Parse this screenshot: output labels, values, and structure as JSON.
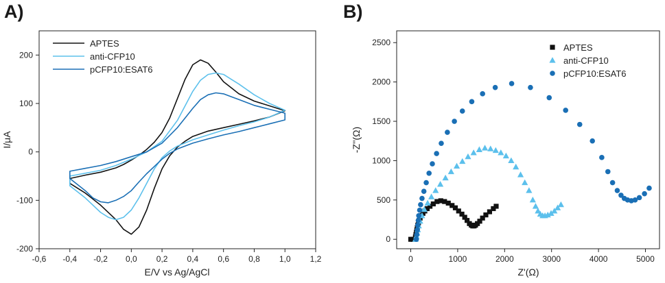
{
  "chart_data": [
    {
      "panel": "A)",
      "type": "line",
      "title": "",
      "xlabel": "E/V vs Ag/AgCl",
      "ylabel": "I/μA",
      "xlim": [
        -0.6,
        1.2
      ],
      "ylim": [
        -200,
        250
      ],
      "xticks": [
        -0.6,
        -0.4,
        -0.2,
        0.0,
        0.2,
        0.4,
        0.6,
        0.8,
        1.0,
        1.2
      ],
      "xtick_labels": [
        "-0,6",
        "-0,4",
        "-0,2",
        "0,0",
        "0,2",
        "0,4",
        "0,6",
        "0,8",
        "1,0",
        "1,2"
      ],
      "yticks": [
        -200,
        -100,
        0,
        100,
        200
      ],
      "ytick_labels": [
        "-200",
        "-100",
        "0",
        "100",
        "200"
      ],
      "legend_position": "top-left",
      "series": [
        {
          "name": "APTES",
          "color": "#111111",
          "x": [
            -0.4,
            -0.3,
            -0.2,
            -0.1,
            -0.05,
            0.0,
            0.05,
            0.1,
            0.15,
            0.2,
            0.25,
            0.3,
            0.35,
            0.4,
            0.45,
            0.5,
            0.55,
            0.6,
            0.7,
            0.8,
            0.9,
            1.0,
            1.0,
            0.9,
            0.8,
            0.7,
            0.6,
            0.5,
            0.4,
            0.35,
            0.3,
            0.25,
            0.2,
            0.15,
            0.1,
            0.05,
            0.0,
            -0.05,
            -0.1,
            -0.2,
            -0.3,
            -0.4
          ],
          "y": [
            -55,
            -48,
            -42,
            -33,
            -26,
            -17,
            -7,
            5,
            20,
            40,
            70,
            110,
            150,
            180,
            190,
            183,
            165,
            145,
            120,
            105,
            95,
            85,
            85,
            72,
            64,
            57,
            50,
            43,
            32,
            22,
            10,
            -8,
            -35,
            -75,
            -120,
            -155,
            -170,
            -160,
            -140,
            -110,
            -85,
            -65
          ]
        },
        {
          "name": "anti-CFP10",
          "color": "#5cc0ec",
          "x": [
            -0.4,
            -0.3,
            -0.2,
            -0.1,
            0.0,
            0.1,
            0.2,
            0.3,
            0.35,
            0.4,
            0.45,
            0.5,
            0.55,
            0.6,
            0.65,
            0.7,
            0.8,
            0.9,
            1.0,
            1.0,
            0.9,
            0.8,
            0.7,
            0.6,
            0.5,
            0.4,
            0.3,
            0.25,
            0.2,
            0.15,
            0.1,
            0.05,
            0.0,
            -0.05,
            -0.1,
            -0.15,
            -0.2,
            -0.3,
            -0.4
          ],
          "y": [
            -50,
            -44,
            -38,
            -28,
            -15,
            0,
            22,
            65,
            95,
            125,
            148,
            160,
            163,
            160,
            150,
            140,
            118,
            100,
            86,
            86,
            72,
            62,
            54,
            45,
            35,
            25,
            12,
            2,
            -12,
            -35,
            -65,
            -95,
            -120,
            -135,
            -140,
            -135,
            -125,
            -95,
            -70
          ]
        },
        {
          "name": "pCFP10:ESAT6",
          "color": "#1a6fb5",
          "x": [
            -0.4,
            -0.3,
            -0.2,
            -0.1,
            0.0,
            0.1,
            0.2,
            0.3,
            0.35,
            0.4,
            0.45,
            0.5,
            0.55,
            0.6,
            0.65,
            0.7,
            0.8,
            0.9,
            1.0,
            1.0,
            0.9,
            0.8,
            0.7,
            0.6,
            0.5,
            0.4,
            0.3,
            0.25,
            0.2,
            0.15,
            0.1,
            0.05,
            0.0,
            -0.05,
            -0.1,
            -0.15,
            -0.2,
            -0.25,
            -0.3,
            -0.4
          ],
          "y": [
            -40,
            -34,
            -28,
            -20,
            -10,
            0,
            18,
            50,
            70,
            90,
            108,
            118,
            122,
            120,
            114,
            108,
            96,
            88,
            80,
            66,
            58,
            50,
            42,
            35,
            27,
            18,
            6,
            -3,
            -15,
            -30,
            -45,
            -62,
            -80,
            -92,
            -100,
            -105,
            -103,
            -95,
            -80,
            -55
          ]
        }
      ]
    },
    {
      "panel": "B)",
      "type": "scatter",
      "title": "",
      "xlabel": "Z'(Ω)",
      "ylabel": "-Z''(Ω)",
      "xlim": [
        -300,
        5300
      ],
      "ylim": [
        -120,
        2650
      ],
      "xticks": [
        0,
        1000,
        2000,
        3000,
        4000,
        5000
      ],
      "xtick_labels": [
        "0",
        "1000",
        "2000",
        "3000",
        "4000",
        "5000"
      ],
      "yticks": [
        0,
        500,
        1000,
        1500,
        2000,
        2500
      ],
      "ytick_labels": [
        "0",
        "500",
        "1000",
        "1500",
        "2000",
        "2500"
      ],
      "legend_position": "top-right",
      "series": [
        {
          "name": "APTES",
          "marker": "square",
          "color": "#111111",
          "x": [
            0,
            50,
            100,
            110,
            120,
            130,
            140,
            150,
            165,
            180,
            200,
            230,
            260,
            300,
            350,
            410,
            480,
            560,
            640,
            720,
            800,
            880,
            950,
            1020,
            1090,
            1150,
            1200,
            1250,
            1290,
            1320,
            1350,
            1380,
            1420,
            1470,
            1530,
            1600,
            1680,
            1760,
            1820
          ],
          "y": [
            0,
            0,
            30,
            60,
            90,
            120,
            150,
            180,
            210,
            240,
            270,
            300,
            330,
            360,
            390,
            420,
            450,
            480,
            490,
            480,
            460,
            430,
            400,
            360,
            320,
            280,
            240,
            200,
            180,
            170,
            170,
            180,
            200,
            230,
            270,
            310,
            350,
            390,
            420
          ]
        },
        {
          "name": "anti-CFP10",
          "marker": "triangle",
          "color": "#5cc0ec",
          "x": [
            100,
            120,
            135,
            150,
            170,
            200,
            240,
            290,
            360,
            440,
            530,
            630,
            740,
            860,
            980,
            1100,
            1220,
            1340,
            1460,
            1580,
            1700,
            1810,
            1920,
            2030,
            2140,
            2240,
            2340,
            2430,
            2520,
            2600,
            2660,
            2710,
            2760,
            2810,
            2860,
            2920,
            2990,
            3060,
            3130,
            3200
          ],
          "y": [
            0,
            40,
            80,
            120,
            170,
            230,
            300,
            380,
            460,
            540,
            620,
            700,
            780,
            860,
            930,
            990,
            1050,
            1100,
            1140,
            1160,
            1150,
            1130,
            1100,
            1060,
            1000,
            920,
            820,
            720,
            620,
            500,
            420,
            360,
            320,
            300,
            300,
            310,
            330,
            360,
            400,
            440
          ]
        },
        {
          "name": "pCFP10:ESAT6",
          "marker": "circle",
          "color": "#1a6fb5",
          "x": [
            120,
            130,
            140,
            150,
            160,
            170,
            190,
            210,
            240,
            280,
            330,
            390,
            460,
            550,
            650,
            780,
            930,
            1100,
            1300,
            1530,
            1800,
            2150,
            2550,
            2950,
            3300,
            3600,
            3870,
            4070,
            4200,
            4300,
            4400,
            4480,
            4550,
            4620,
            4700,
            4780,
            4870,
            4980,
            5080
          ],
          "y": [
            0,
            60,
            120,
            180,
            240,
            300,
            370,
            440,
            520,
            610,
            720,
            840,
            960,
            1090,
            1220,
            1360,
            1500,
            1630,
            1750,
            1850,
            1930,
            1980,
            1930,
            1800,
            1640,
            1460,
            1250,
            1040,
            860,
            720,
            620,
            560,
            520,
            500,
            490,
            500,
            530,
            580,
            650
          ]
        }
      ]
    }
  ]
}
